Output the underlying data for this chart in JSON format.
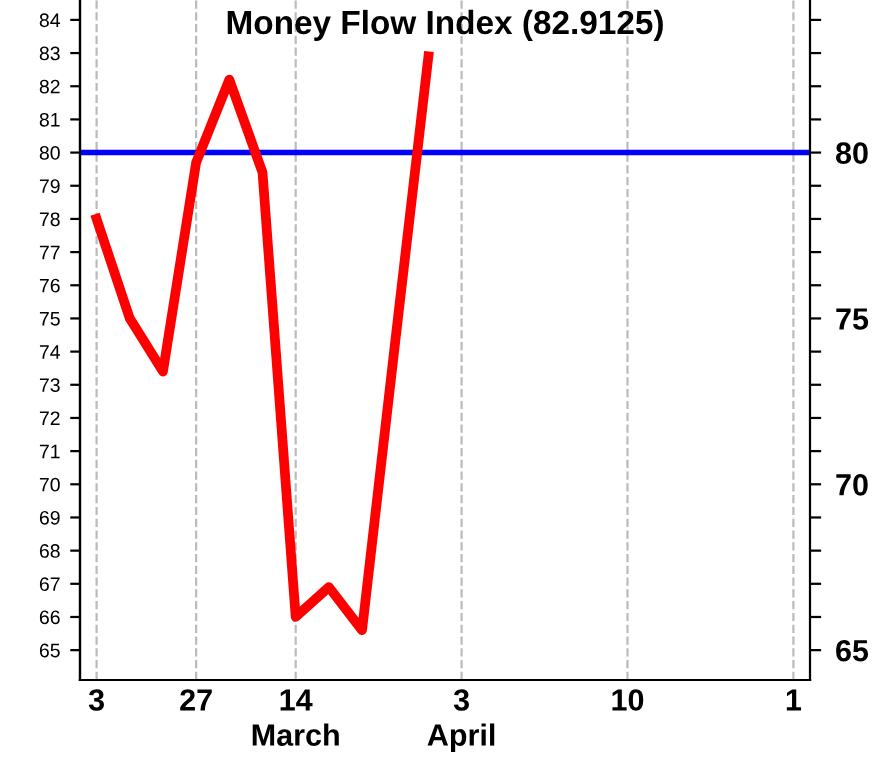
{
  "chart_data": {
    "type": "line",
    "title": "Money Flow Index (82.9125)",
    "categories": [
      "3",
      null,
      null,
      "27",
      null,
      null,
      "14\nMarch",
      null,
      null,
      null,
      null,
      "3\nApril",
      null,
      null,
      null,
      null,
      "10",
      null,
      null,
      null,
      null,
      "1"
    ],
    "series": [
      {
        "color": "#ff0000",
        "values": [
          78.0,
          75,
          73.4,
          79.7,
          82.2,
          79.4,
          66,
          66.9,
          65.6,
          74.3,
          82.9,
          null,
          null,
          null,
          null,
          null,
          null,
          null,
          null,
          null,
          null,
          null
        ]
      }
    ],
    "ylim": [
      64.1,
      84.6
    ],
    "yticks": [
      65,
      66,
      67,
      68,
      69,
      70,
      71,
      72,
      73,
      74,
      75,
      76,
      77,
      78,
      79,
      80,
      81,
      82,
      83,
      84
    ],
    "y2lim": [
      64.1,
      84.6
    ],
    "y2ticks": [
      65,
      {
        "value": 66,
        "label": null
      },
      {
        "value": 67,
        "label": null
      },
      {
        "value": 68,
        "label": null
      },
      {
        "value": 69,
        "label": null
      },
      70,
      {
        "value": 71,
        "label": null
      },
      {
        "value": 72,
        "label": null
      },
      {
        "value": 73,
        "label": null
      },
      {
        "value": 74,
        "label": null
      },
      75,
      {
        "value": 76,
        "label": null
      },
      {
        "value": 77,
        "label": null
      },
      {
        "value": 78,
        "label": null
      },
      {
        "value": 79,
        "label": null
      },
      80,
      {
        "value": 81,
        "label": null
      },
      {
        "value": 82,
        "label": null
      },
      {
        "value": 83,
        "label": null
      },
      {
        "value": 84,
        "label": null
      }
    ],
    "ref_lines": [
      {
        "axis": "y",
        "value": 80,
        "color": "#0000ff"
      }
    ],
    "grid": "x",
    "line_style": "solid",
    "marker": "none",
    "legend": false
  }
}
